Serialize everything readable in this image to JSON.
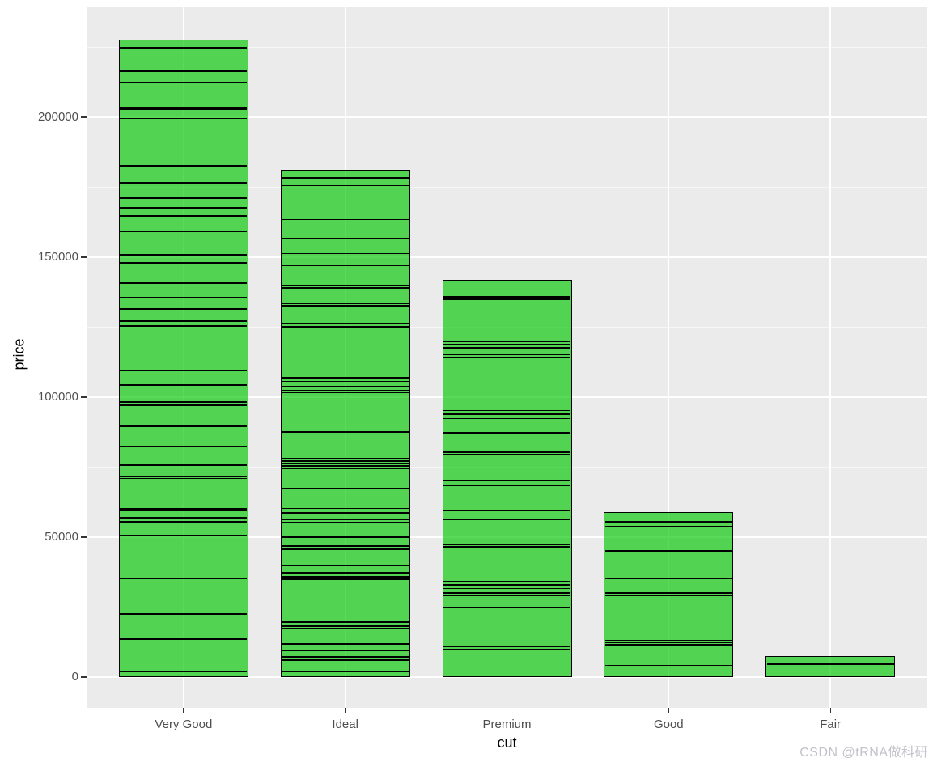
{
  "figure": {
    "watermark": "CSDN @tRNA做科研"
  },
  "chart_data": {
    "type": "bar",
    "stacked": true,
    "xlabel": "cut",
    "ylabel": "price",
    "categories": [
      "Very Good",
      "Ideal",
      "Premium",
      "Good",
      "Fair"
    ],
    "values": [
      227700,
      181200,
      141900,
      59000,
      7500
    ],
    "internal_lines": [
      [
        2000,
        13600,
        20400,
        21800,
        22500,
        35300,
        50700,
        55500,
        56900,
        59400,
        60100,
        70900,
        71500,
        75700,
        82400,
        89600,
        97100,
        98300,
        104300,
        109500,
        125400,
        126100,
        127200,
        131500,
        132200,
        135500,
        140800,
        148000,
        150900,
        159100,
        164700,
        167600,
        171100,
        176600,
        182700,
        199600,
        202900,
        203600,
        212600,
        216500,
        224900,
        226200
      ],
      [
        2000,
        6100,
        7300,
        9500,
        11800,
        17300,
        18200,
        19600,
        35000,
        35900,
        37200,
        38600,
        39800,
        44600,
        45600,
        46800,
        47500,
        50000,
        55200,
        56200,
        58700,
        60300,
        67500,
        74500,
        75400,
        76400,
        77200,
        78100,
        87600,
        101700,
        102400,
        103700,
        105600,
        107000,
        115700,
        125100,
        126500,
        132600,
        133500,
        139000,
        139800,
        147000,
        150400,
        151300,
        156700,
        163400,
        175600,
        178300
      ],
      [
        9900,
        10900,
        24700,
        29000,
        30000,
        31700,
        33000,
        34300,
        46500,
        47300,
        49000,
        50400,
        56200,
        59600,
        68300,
        68600,
        70200,
        79400,
        80300,
        87300,
        92300,
        94000,
        95200,
        114100,
        115200,
        117600,
        118900,
        119900,
        135000,
        135900
      ],
      [
        4200,
        5100,
        11500,
        12300,
        13100,
        29200,
        30000,
        35300,
        44800,
        45100,
        53900,
        55500
      ],
      [
        4600
      ]
    ],
    "yticks": [
      0,
      50000,
      100000,
      150000,
      200000
    ],
    "ytick_labels": [
      "0",
      "50000",
      "100000",
      "150000",
      "200000"
    ],
    "yminor": [
      25000,
      75000,
      125000,
      175000,
      225000
    ],
    "ylim": [
      -11000,
      239300
    ],
    "grid": "major white + minor faint white, gray panel",
    "legend": "none",
    "colors": {
      "panel_background": "#EBEBEB",
      "gridline_major": "#FFFFFF",
      "bar_fill_effective": "#52D452",
      "bar_fill_rgba": "rgba(0,200,0,0.65)",
      "bar_border": "#000000",
      "axis_text": "#4D4D4D",
      "axis_title": "#000000",
      "watermark_text": "#C2C2CA"
    }
  }
}
